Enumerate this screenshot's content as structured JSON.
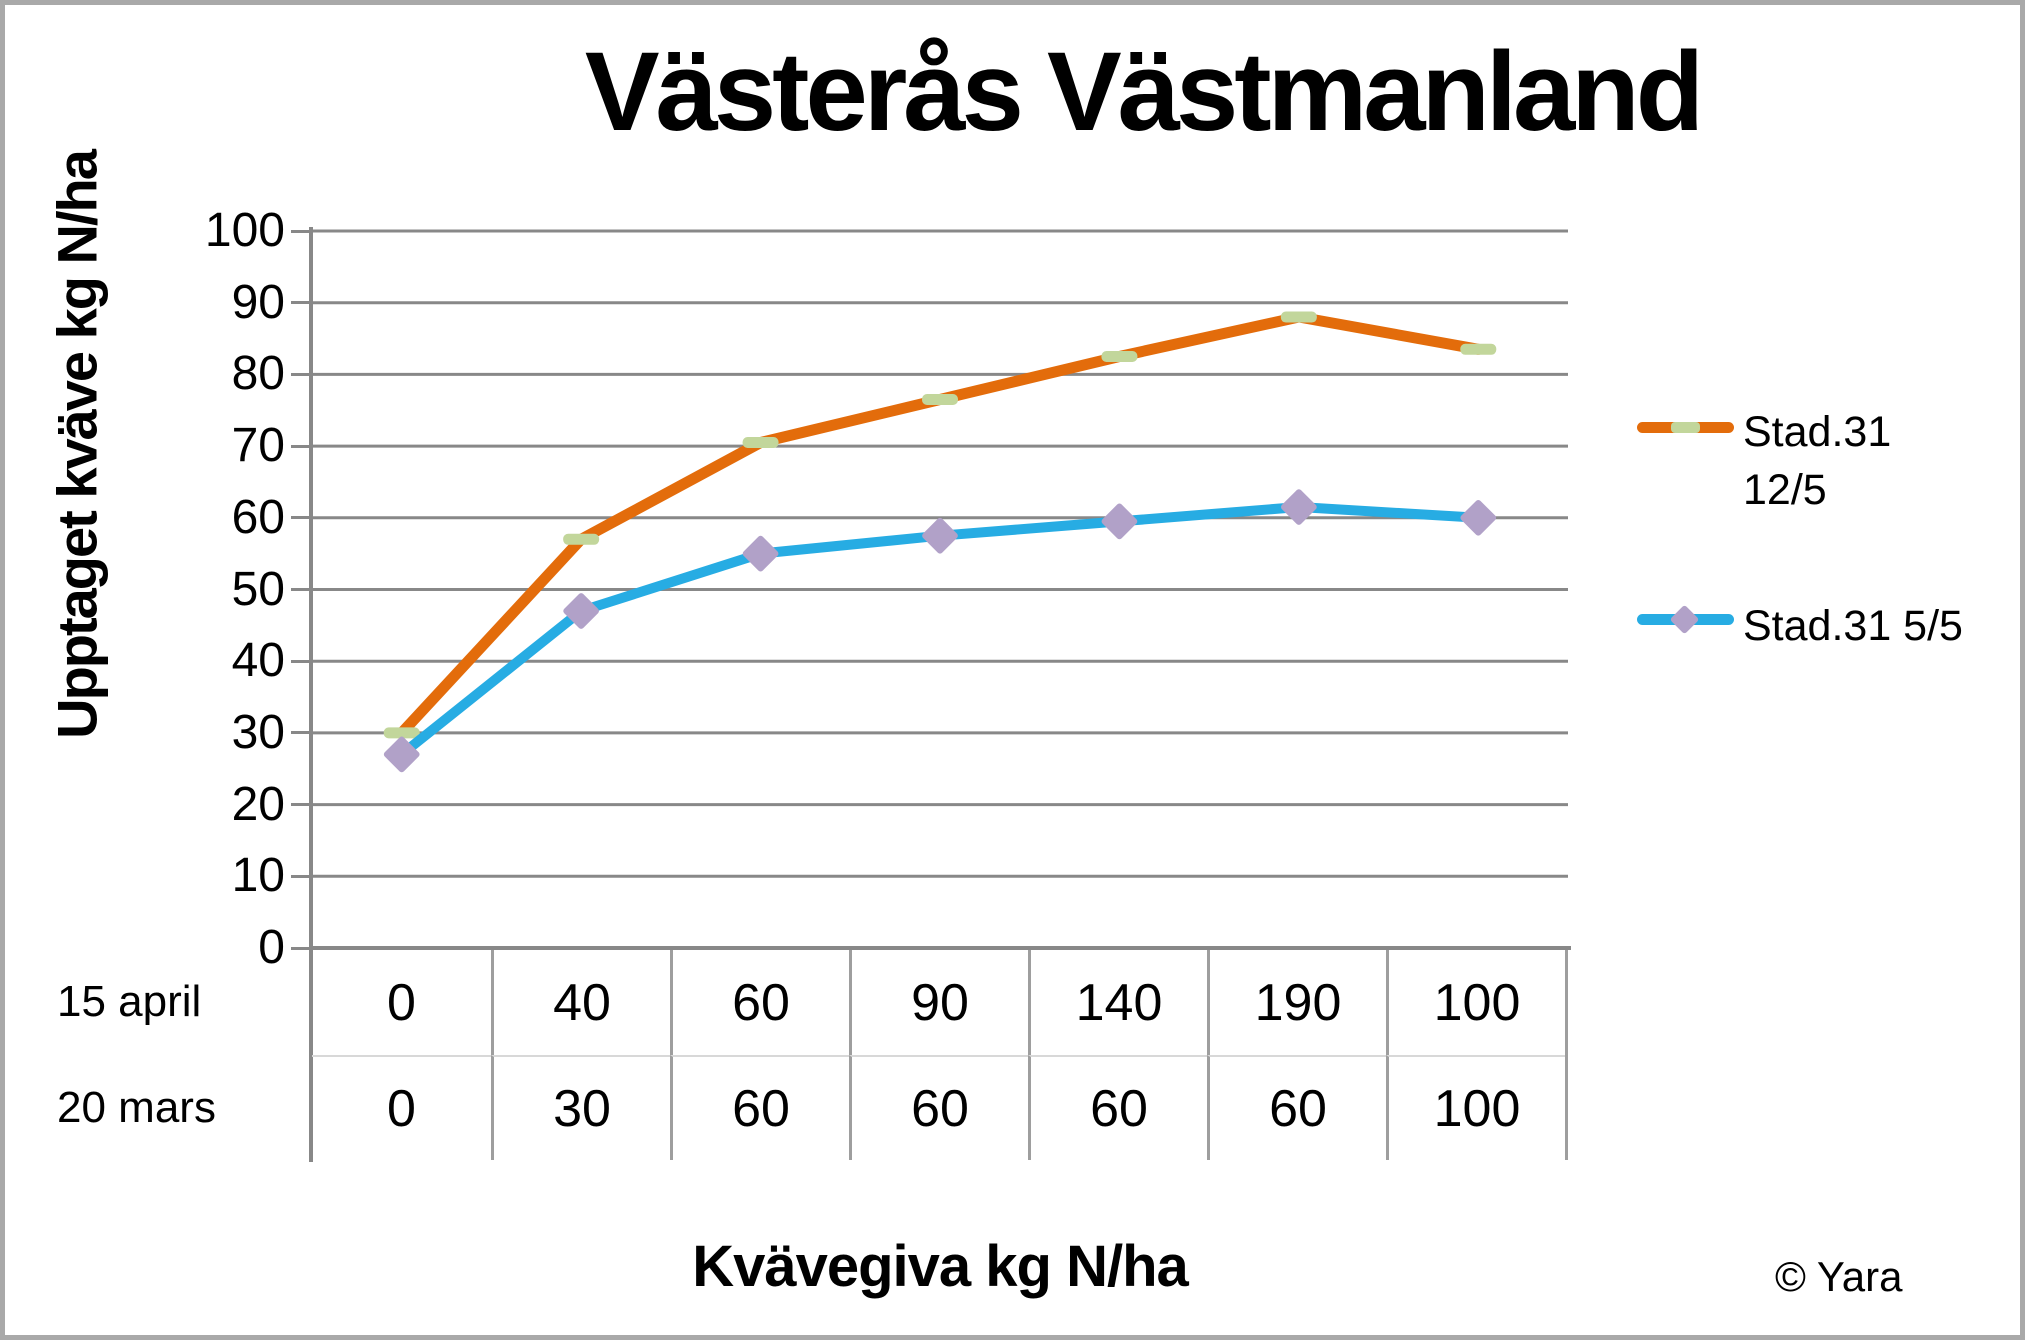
{
  "chart_data": {
    "type": "line",
    "title": "Västerås Västmanland",
    "xlabel": "Kvävegiva kg N/ha",
    "ylabel": "Upptaget kväve kg N/ha",
    "ylim": [
      0,
      100
    ],
    "yticks": [
      100,
      90,
      80,
      70,
      60,
      50,
      40,
      30,
      20,
      10,
      0
    ],
    "grid": "horizontal gridlines every 10",
    "legend_position": "right-middle",
    "series": [
      {
        "name": "Stad.31 12/5",
        "legend_lines": [
          "Stad.31",
          "12/5"
        ],
        "color": "#e36c0b",
        "marker": "dash",
        "marker_color": "#c2d69b",
        "values": [
          30,
          57,
          70.5,
          76.5,
          82.5,
          88,
          83.5
        ]
      },
      {
        "name": "Stad.31 5/5",
        "legend_lines": [
          "Stad.31 5/5"
        ],
        "color": "#27ace3",
        "marker": "diamond",
        "marker_color": "#b1a1c8",
        "values": [
          27,
          47,
          55,
          57.5,
          59.5,
          61.5,
          60
        ]
      }
    ],
    "x_table": {
      "rows": [
        {
          "label": "15 april",
          "values": [
            "0",
            "40",
            "60",
            "90",
            "140",
            "190",
            "100"
          ]
        },
        {
          "label": "20 mars",
          "values": [
            "0",
            "30",
            "60",
            "60",
            "60",
            "60",
            "100"
          ]
        }
      ]
    },
    "copyright": "© Yara",
    "colors": {
      "gridline": "#888888",
      "axis": "#888888",
      "table_divider": "#9e9e9e",
      "series1": "#e36c0b",
      "series1_marker": "#c2d69b",
      "series2": "#27ace3",
      "series2_marker": "#b1a1c8"
    }
  }
}
